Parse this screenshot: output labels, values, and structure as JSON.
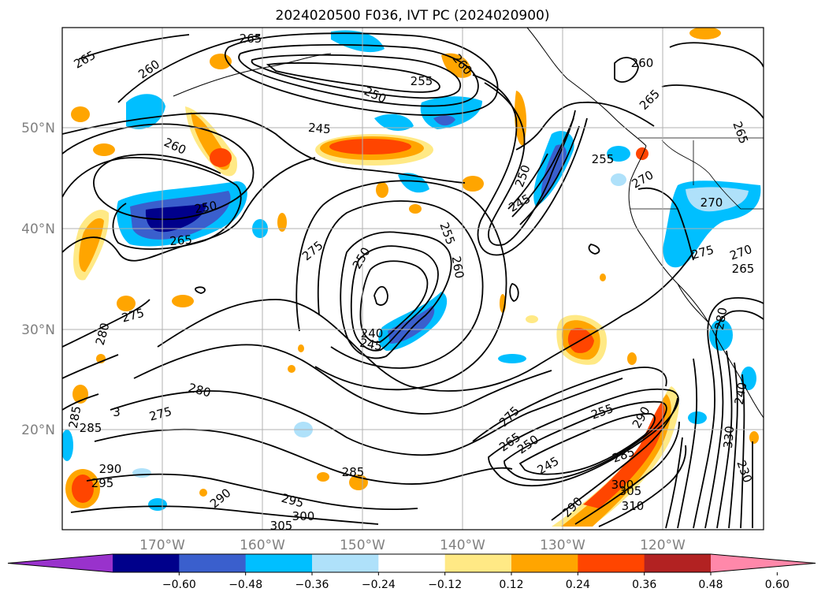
{
  "title": "2024020500 F036, IVT PC (2024020900)",
  "map": {
    "lat_labels": [
      "50°N",
      "40°N",
      "30°N",
      "20°N"
    ],
    "lon_labels": [
      "170°W",
      "160°W",
      "150°W",
      "140°W",
      "130°W",
      "120°W"
    ],
    "grid": true
  },
  "contour_labels": [
    {
      "text": "265",
      "rot": -30
    },
    {
      "text": "260",
      "rot": -35
    },
    {
      "text": "265",
      "rot": 0
    },
    {
      "text": "255",
      "rot": 0
    },
    {
      "text": "260",
      "rot": 50
    },
    {
      "text": "250",
      "rot": 25
    },
    {
      "text": "245",
      "rot": 5
    },
    {
      "text": "260",
      "rot": 25
    },
    {
      "text": "260",
      "rot": 0
    },
    {
      "text": "265",
      "rot": -45
    },
    {
      "text": "265",
      "rot": 70
    },
    {
      "text": "255",
      "rot": 0
    },
    {
      "text": "270",
      "rot": -30
    },
    {
      "text": "250",
      "rot": -70
    },
    {
      "text": "245",
      "rot": -30
    },
    {
      "text": "255",
      "rot": 70
    },
    {
      "text": "260",
      "rot": 80
    },
    {
      "text": "250",
      "rot": -60
    },
    {
      "text": "275",
      "rot": -40
    },
    {
      "text": "250",
      "rot": -10
    },
    {
      "text": "265",
      "rot": -5
    },
    {
      "text": "275",
      "rot": -15
    },
    {
      "text": "270",
      "rot": 0
    },
    {
      "text": "270",
      "rot": -20
    },
    {
      "text": "265",
      "rot": 0
    },
    {
      "text": "275",
      "rot": -15
    },
    {
      "text": "280",
      "rot": -75
    },
    {
      "text": "240",
      "rot": 0
    },
    {
      "text": "245",
      "rot": 10
    },
    {
      "text": "280",
      "rot": 15
    },
    {
      "text": "275",
      "rot": -15
    },
    {
      "text": "285",
      "rot": -80
    },
    {
      "text": "285",
      "rot": 0
    },
    {
      "text": "290",
      "rot": -40
    },
    {
      "text": "290",
      "rot": 0
    },
    {
      "text": "295",
      "rot": 0
    },
    {
      "text": "295",
      "rot": 15
    },
    {
      "text": "300",
      "rot": 0
    },
    {
      "text": "305",
      "rot": 0
    },
    {
      "text": "275",
      "rot": -45
    },
    {
      "text": "265",
      "rot": -35
    },
    {
      "text": "250",
      "rot": -35
    },
    {
      "text": "245",
      "rot": -30
    },
    {
      "text": "255",
      "rot": -20
    },
    {
      "text": "290",
      "rot": -60
    },
    {
      "text": "285",
      "rot": -20
    },
    {
      "text": "290",
      "rot": -45
    },
    {
      "text": "300",
      "rot": 0
    },
    {
      "text": "305",
      "rot": 0
    },
    {
      "text": "310",
      "rot": 0
    },
    {
      "text": "230",
      "rot": 70
    },
    {
      "text": "330",
      "rot": -85
    },
    {
      "text": "240",
      "rot": -80
    },
    {
      "text": "280",
      "rot": -80
    },
    {
      "text": "3",
      "rot": 0
    },
    {
      "text": "285",
      "rot": 0
    }
  ],
  "colorbar": {
    "colors": [
      "#9932cc",
      "#00008b",
      "#3a5fcd",
      "#00bfff",
      "#afe1fa",
      "#ffffff",
      "#ffe985",
      "#ffa500",
      "#ff4500",
      "#b22222",
      "#ff88aa"
    ],
    "ticks": [
      "−0.60",
      "−0.48",
      "−0.36",
      "−0.24",
      "−0.12",
      "0.12",
      "0.24",
      "0.36",
      "0.48",
      "0.60"
    ],
    "extend": "both"
  }
}
